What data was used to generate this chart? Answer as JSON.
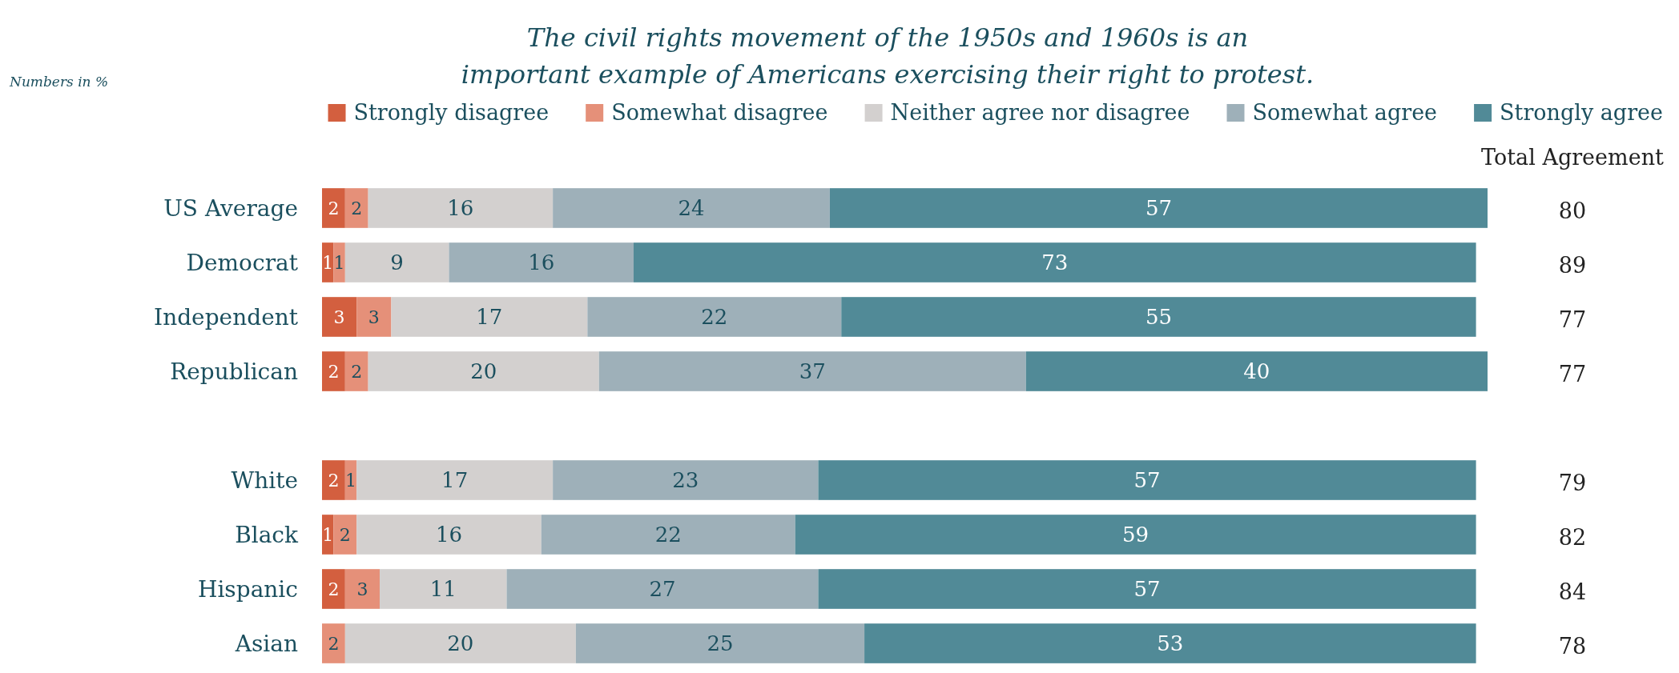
{
  "chart_data": {
    "type": "bar",
    "orientation": "horizontal",
    "stacked": true,
    "title": "The civil rights movement of the 1950s and 1960s is an important example of Americans exercising their right to protest.",
    "annotations": [
      "Numbers in %",
      "Total Agreement",
      "80",
      "89",
      "77",
      "77",
      "79",
      "82",
      "84",
      "78"
    ],
    "categories": [
      "US Average",
      "Democrat",
      "Independent",
      "Republican",
      null,
      "White",
      "Black",
      "Hispanic",
      "Asian"
    ],
    "series": [
      {
        "name": "Strongly disagree",
        "color": "#d35f3f",
        "values": [
          2,
          1,
          3,
          2,
          null,
          2,
          1,
          2,
          null
        ]
      },
      {
        "name": "Somewhat disagree",
        "color": "#e59079",
        "values": [
          2,
          1,
          3,
          2,
          null,
          1,
          2,
          3,
          2
        ]
      },
      {
        "name": "Neither agree nor disagree",
        "color": "#d3d0cf",
        "values": [
          16,
          9,
          17,
          20,
          null,
          17,
          16,
          11,
          20
        ]
      },
      {
        "name": "Somewhat agree",
        "color": "#9eb0b9",
        "values": [
          24,
          16,
          22,
          37,
          null,
          23,
          22,
          27,
          25
        ]
      },
      {
        "name": "Strongly agree",
        "color": "#518a97",
        "values": [
          57,
          73,
          55,
          40,
          null,
          57,
          59,
          57,
          53
        ]
      }
    ],
    "xlim": [
      0,
      101
    ],
    "tick_labels": "y",
    "data_labels": true,
    "legend": "top"
  }
}
